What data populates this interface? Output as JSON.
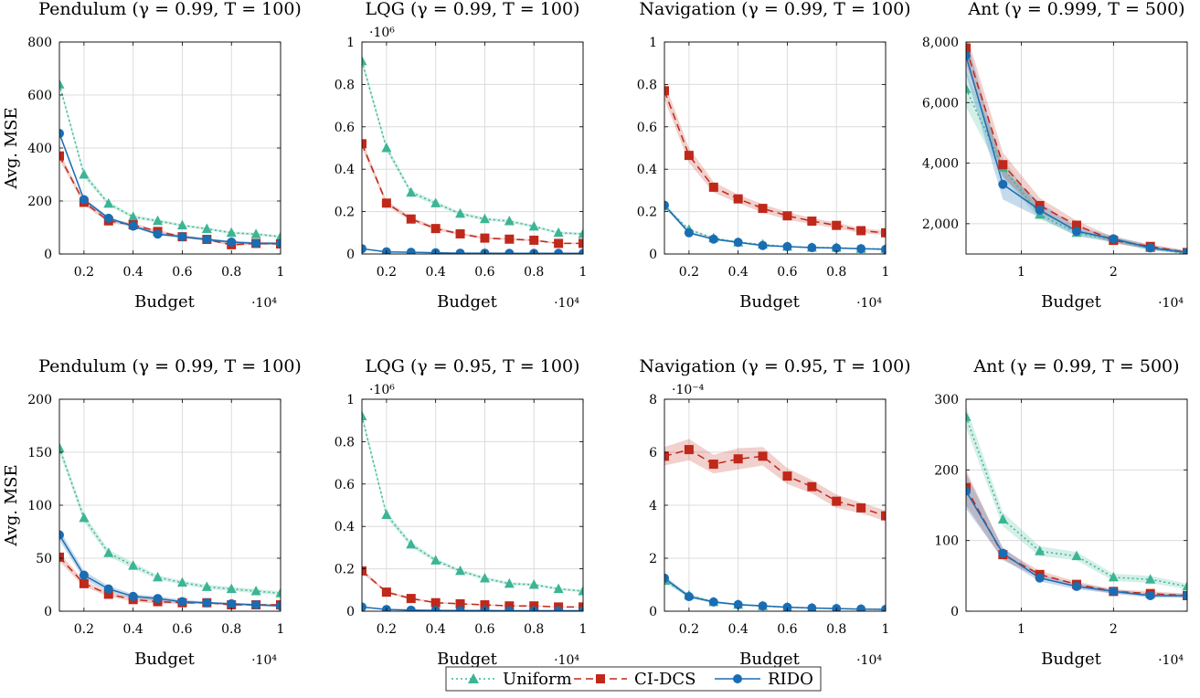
{
  "colors": {
    "uniform": "#3cb594",
    "cidcs": "#c0281a",
    "rido": "#1a6db3",
    "grid": "#dcdcdc"
  },
  "legend": {
    "items": [
      {
        "label": "Uniform",
        "key": "uniform",
        "dash": "2,3",
        "marker": "triangle"
      },
      {
        "label": "CI-DCS",
        "key": "cidcs",
        "dash": "8,5",
        "marker": "square"
      },
      {
        "label": "RIDO",
        "key": "rido",
        "dash": "",
        "marker": "circle"
      }
    ]
  },
  "chart_data": [
    {
      "type": "line",
      "title": "Pendulum (γ = 0.99, T = 100)",
      "xlabel": "Budget",
      "ylabel": "Avg. MSE",
      "x_multiplier": "·10⁴",
      "y_multiplier": "",
      "xlim": [
        0.1,
        1
      ],
      "ylim": [
        0,
        800
      ],
      "xticks": [
        0.2,
        0.4,
        0.6,
        0.8,
        1
      ],
      "xtick_labels": [
        "0.2",
        "0.4",
        "0.6",
        "0.8",
        "1"
      ],
      "yticks": [
        0,
        200,
        400,
        600,
        800
      ],
      "ytick_labels": [
        "0",
        "200",
        "400",
        "600",
        "800"
      ],
      "x": [
        0.1,
        0.2,
        0.3,
        0.4,
        0.5,
        0.6,
        0.7,
        0.8,
        0.9,
        1.0
      ],
      "series": [
        {
          "name": "Uniform",
          "key": "uniform",
          "values": [
            640,
            300,
            190,
            140,
            125,
            108,
            95,
            80,
            75,
            65
          ],
          "band": [
            10,
            12,
            8,
            7,
            6,
            5,
            5,
            5,
            5,
            5
          ]
        },
        {
          "name": "CI-DCS",
          "key": "cidcs",
          "values": [
            370,
            195,
            125,
            110,
            85,
            65,
            55,
            35,
            40,
            38
          ],
          "band": [
            15,
            10,
            8,
            6,
            6,
            5,
            5,
            5,
            5,
            5
          ]
        },
        {
          "name": "RIDO",
          "key": "rido",
          "values": [
            455,
            205,
            135,
            105,
            75,
            65,
            55,
            45,
            40,
            40
          ],
          "band": [
            8,
            7,
            6,
            5,
            5,
            5,
            5,
            5,
            5,
            5
          ]
        }
      ]
    },
    {
      "type": "line",
      "title": "LQG (γ = 0.99, T = 100)",
      "xlabel": "Budget",
      "ylabel": "",
      "x_multiplier": "·10⁴",
      "y_multiplier": "·10⁶",
      "xlim": [
        0.1,
        1
      ],
      "ylim": [
        0,
        1
      ],
      "xticks": [
        0.2,
        0.4,
        0.6,
        0.8,
        1
      ],
      "xtick_labels": [
        "0.2",
        "0.4",
        "0.6",
        "0.8",
        "1"
      ],
      "yticks": [
        0,
        0.2,
        0.4,
        0.6,
        0.8,
        1
      ],
      "ytick_labels": [
        "0",
        "0.2",
        "0.4",
        "0.6",
        "0.8",
        "1"
      ],
      "x": [
        0.1,
        0.2,
        0.3,
        0.4,
        0.5,
        0.6,
        0.7,
        0.8,
        0.9,
        1.0
      ],
      "series": [
        {
          "name": "Uniform",
          "key": "uniform",
          "values": [
            0.91,
            0.5,
            0.29,
            0.24,
            0.19,
            0.165,
            0.155,
            0.13,
            0.1,
            0.095
          ],
          "band": [
            0.02,
            0.015,
            0.012,
            0.01,
            0.008,
            0.008,
            0.007,
            0.007,
            0.006,
            0.006
          ]
        },
        {
          "name": "CI-DCS",
          "key": "cidcs",
          "values": [
            0.52,
            0.24,
            0.165,
            0.12,
            0.095,
            0.075,
            0.07,
            0.065,
            0.05,
            0.05
          ],
          "band": [
            0.02,
            0.012,
            0.01,
            0.008,
            0.006,
            0.005,
            0.005,
            0.005,
            0.004,
            0.004
          ]
        },
        {
          "name": "RIDO",
          "key": "rido",
          "values": [
            0.025,
            0.01,
            0.008,
            0.006,
            0.004,
            0.004,
            0.003,
            0.003,
            0.003,
            0.003
          ],
          "band": [
            0.003,
            0.002,
            0.002,
            0.002,
            0.001,
            0.001,
            0.001,
            0.001,
            0.001,
            0.001
          ]
        }
      ]
    },
    {
      "type": "line",
      "title": "Navigation (γ = 0.99, T = 100)",
      "xlabel": "Budget",
      "ylabel": "",
      "x_multiplier": "·10⁴",
      "y_multiplier": "",
      "xlim": [
        0.1,
        1
      ],
      "ylim": [
        0,
        1
      ],
      "xticks": [
        0.2,
        0.4,
        0.6,
        0.8,
        1
      ],
      "xtick_labels": [
        "0.2",
        "0.4",
        "0.6",
        "0.8",
        "1"
      ],
      "yticks": [
        0,
        0.2,
        0.4,
        0.6,
        0.8,
        1
      ],
      "ytick_labels": [
        "0",
        "0.2",
        "0.4",
        "0.6",
        "0.8",
        "1"
      ],
      "x": [
        0.1,
        0.2,
        0.3,
        0.4,
        0.5,
        0.6,
        0.7,
        0.8,
        0.9,
        1.0
      ],
      "series": [
        {
          "name": "Uniform",
          "key": "uniform",
          "values": [
            0.225,
            0.115,
            0.075,
            0.055,
            0.045,
            0.035,
            0.03,
            0.03,
            0.025,
            0.025
          ],
          "band": [
            0.01,
            0.006,
            0.005,
            0.004,
            0.003,
            0.003,
            0.003,
            0.003,
            0.002,
            0.002
          ]
        },
        {
          "name": "CI-DCS",
          "key": "cidcs",
          "values": [
            0.77,
            0.465,
            0.315,
            0.26,
            0.215,
            0.18,
            0.155,
            0.135,
            0.11,
            0.1
          ],
          "band": [
            0.04,
            0.035,
            0.025,
            0.02,
            0.02,
            0.018,
            0.015,
            0.013,
            0.012,
            0.01
          ]
        },
        {
          "name": "RIDO",
          "key": "rido",
          "values": [
            0.23,
            0.1,
            0.07,
            0.055,
            0.04,
            0.035,
            0.03,
            0.028,
            0.025,
            0.022
          ],
          "band": [
            0.01,
            0.006,
            0.005,
            0.004,
            0.003,
            0.003,
            0.003,
            0.003,
            0.002,
            0.002
          ]
        }
      ]
    },
    {
      "type": "line",
      "title": "Ant (γ = 0.999, T = 500)",
      "xlabel": "Budget",
      "ylabel": "",
      "x_multiplier": "·10⁴",
      "y_multiplier": "",
      "xlim": [
        0.4,
        2.8
      ],
      "ylim": [
        1000,
        8000
      ],
      "xticks": [
        1,
        2
      ],
      "xtick_labels": [
        "1",
        "2"
      ],
      "yticks": [
        2000,
        4000,
        6000,
        8000
      ],
      "ytick_labels": [
        "2,000",
        "4,000",
        "6,000",
        "8,000"
      ],
      "x": [
        0.4,
        0.8,
        1.2,
        1.6,
        2.0,
        2.4,
        2.8
      ],
      "series": [
        {
          "name": "Uniform",
          "key": "uniform",
          "values": [
            6450,
            3850,
            2300,
            1700,
            1450,
            1200,
            1000
          ],
          "band": [
            600,
            300,
            150,
            100,
            80,
            70,
            60
          ]
        },
        {
          "name": "CI-DCS",
          "key": "cidcs",
          "values": [
            7800,
            3950,
            2600,
            1950,
            1450,
            1250,
            1050
          ],
          "band": [
            500,
            400,
            250,
            150,
            100,
            80,
            60
          ]
        },
        {
          "name": "RIDO",
          "key": "rido",
          "values": [
            7550,
            3300,
            2450,
            1750,
            1500,
            1200,
            1050
          ],
          "band": [
            600,
            500,
            250,
            150,
            100,
            80,
            60
          ]
        }
      ]
    },
    {
      "type": "line",
      "title": "Pendulum (γ = 0.99, T = 100)",
      "xlabel": "Budget",
      "ylabel": "Avg. MSE",
      "x_multiplier": "·10⁴",
      "y_multiplier": "",
      "xlim": [
        0.1,
        1
      ],
      "ylim": [
        0,
        200
      ],
      "xticks": [
        0.2,
        0.4,
        0.6,
        0.8,
        1
      ],
      "xtick_labels": [
        "0.2",
        "0.4",
        "0.6",
        "0.8",
        "1"
      ],
      "yticks": [
        0,
        50,
        100,
        150,
        200
      ],
      "ytick_labels": [
        "0",
        "50",
        "100",
        "150",
        "200"
      ],
      "x": [
        0.1,
        0.2,
        0.3,
        0.4,
        0.5,
        0.6,
        0.7,
        0.8,
        0.9,
        1.0
      ],
      "series": [
        {
          "name": "Uniform",
          "key": "uniform",
          "values": [
            154,
            88,
            55,
            43,
            32,
            27,
            23,
            21,
            19,
            17
          ],
          "band": [
            4,
            4,
            3,
            3,
            2,
            2,
            2,
            2,
            2,
            2
          ]
        },
        {
          "name": "CI-DCS",
          "key": "cidcs",
          "values": [
            51,
            26,
            16,
            11,
            9,
            8,
            8,
            6,
            6,
            6
          ],
          "band": [
            4,
            3,
            2,
            2,
            2,
            1,
            1,
            1,
            1,
            1
          ]
        },
        {
          "name": "RIDO",
          "key": "rido",
          "values": [
            72,
            34,
            21,
            14,
            12,
            9,
            8,
            7,
            6,
            5
          ],
          "band": [
            5,
            4,
            3,
            2,
            2,
            2,
            1,
            1,
            1,
            1
          ]
        }
      ]
    },
    {
      "type": "line",
      "title": "LQG (γ = 0.95, T = 100)",
      "xlabel": "Budget",
      "ylabel": "",
      "x_multiplier": "·10⁴",
      "y_multiplier": "·10⁶",
      "xlim": [
        0.1,
        1
      ],
      "ylim": [
        0,
        1
      ],
      "xticks": [
        0.2,
        0.4,
        0.6,
        0.8,
        1
      ],
      "xtick_labels": [
        "0.2",
        "0.4",
        "0.6",
        "0.8",
        "1"
      ],
      "yticks": [
        0,
        0.2,
        0.4,
        0.6,
        0.8,
        1
      ],
      "ytick_labels": [
        "0",
        "0.2",
        "0.4",
        "0.6",
        "0.8",
        "1"
      ],
      "x": [
        0.1,
        0.2,
        0.3,
        0.4,
        0.5,
        0.6,
        0.7,
        0.8,
        0.9,
        1.0
      ],
      "series": [
        {
          "name": "Uniform",
          "key": "uniform",
          "values": [
            0.92,
            0.455,
            0.315,
            0.24,
            0.19,
            0.155,
            0.13,
            0.125,
            0.105,
            0.095
          ],
          "band": [
            0.02,
            0.015,
            0.012,
            0.01,
            0.008,
            0.008,
            0.007,
            0.007,
            0.006,
            0.006
          ]
        },
        {
          "name": "CI-DCS",
          "key": "cidcs",
          "values": [
            0.19,
            0.09,
            0.06,
            0.04,
            0.035,
            0.03,
            0.025,
            0.025,
            0.02,
            0.02
          ],
          "band": [
            0.01,
            0.006,
            0.005,
            0.004,
            0.003,
            0.003,
            0.003,
            0.003,
            0.002,
            0.002
          ]
        },
        {
          "name": "RIDO",
          "key": "rido",
          "values": [
            0.02,
            0.008,
            0.005,
            0.004,
            0.003,
            0.003,
            0.002,
            0.002,
            0.002,
            0.002
          ],
          "band": [
            0.003,
            0.002,
            0.002,
            0.001,
            0.001,
            0.001,
            0.001,
            0.001,
            0.001,
            0.001
          ]
        }
      ]
    },
    {
      "type": "line",
      "title": "Navigation (γ = 0.95, T = 100)",
      "xlabel": "Budget",
      "ylabel": "",
      "x_multiplier": "·10⁴",
      "y_multiplier": "·10⁻⁴",
      "xlim": [
        0.1,
        1
      ],
      "ylim": [
        0,
        8
      ],
      "xticks": [
        0.2,
        0.4,
        0.6,
        0.8,
        1
      ],
      "xtick_labels": [
        "0.2",
        "0.4",
        "0.6",
        "0.8",
        "1"
      ],
      "yticks": [
        0,
        2,
        4,
        6,
        8
      ],
      "ytick_labels": [
        "0",
        "2",
        "4",
        "6",
        "8"
      ],
      "x": [
        0.1,
        0.2,
        0.3,
        0.4,
        0.5,
        0.6,
        0.7,
        0.8,
        0.9,
        1.0
      ],
      "series": [
        {
          "name": "Uniform",
          "key": "uniform",
          "values": [
            1.15,
            0.6,
            0.35,
            0.25,
            0.2,
            0.15,
            0.12,
            0.1,
            0.08,
            0.07
          ],
          "band": [
            0.1,
            0.06,
            0.04,
            0.03,
            0.03,
            0.02,
            0.02,
            0.02,
            0.02,
            0.02
          ]
        },
        {
          "name": "CI-DCS",
          "key": "cidcs",
          "values": [
            5.85,
            6.1,
            5.55,
            5.75,
            5.85,
            5.1,
            4.7,
            4.15,
            3.9,
            3.6
          ],
          "band": [
            0.35,
            0.4,
            0.35,
            0.4,
            0.35,
            0.3,
            0.25,
            0.25,
            0.2,
            0.2
          ]
        },
        {
          "name": "RIDO",
          "key": "rido",
          "values": [
            1.25,
            0.55,
            0.35,
            0.25,
            0.2,
            0.15,
            0.12,
            0.1,
            0.08,
            0.07
          ],
          "band": [
            0.1,
            0.06,
            0.04,
            0.03,
            0.03,
            0.02,
            0.02,
            0.02,
            0.02,
            0.02
          ]
        }
      ]
    },
    {
      "type": "line",
      "title": "Ant (γ = 0.99, T = 500)",
      "xlabel": "Budget",
      "ylabel": "",
      "x_multiplier": "·10⁴",
      "y_multiplier": "",
      "xlim": [
        0.4,
        2.8
      ],
      "ylim": [
        0,
        300
      ],
      "xticks": [
        1,
        2
      ],
      "xtick_labels": [
        "1",
        "2"
      ],
      "yticks": [
        0,
        100,
        200,
        300
      ],
      "ytick_labels": [
        "0",
        "100",
        "200",
        "300"
      ],
      "x": [
        0.4,
        0.8,
        1.2,
        1.6,
        2.0,
        2.4,
        2.8
      ],
      "series": [
        {
          "name": "Uniform",
          "key": "uniform",
          "values": [
            275,
            130,
            85,
            78,
            48,
            45,
            35
          ],
          "band": [
            15,
            10,
            7,
            6,
            5,
            5,
            4
          ]
        },
        {
          "name": "CI-DCS",
          "key": "cidcs",
          "values": [
            175,
            80,
            52,
            38,
            28,
            25,
            22
          ],
          "band": [
            25,
            8,
            5,
            4,
            3,
            3,
            3
          ]
        },
        {
          "name": "RIDO",
          "key": "rido",
          "values": [
            170,
            82,
            47,
            35,
            28,
            22,
            22
          ],
          "band": [
            25,
            8,
            5,
            4,
            3,
            3,
            3
          ]
        }
      ]
    }
  ]
}
